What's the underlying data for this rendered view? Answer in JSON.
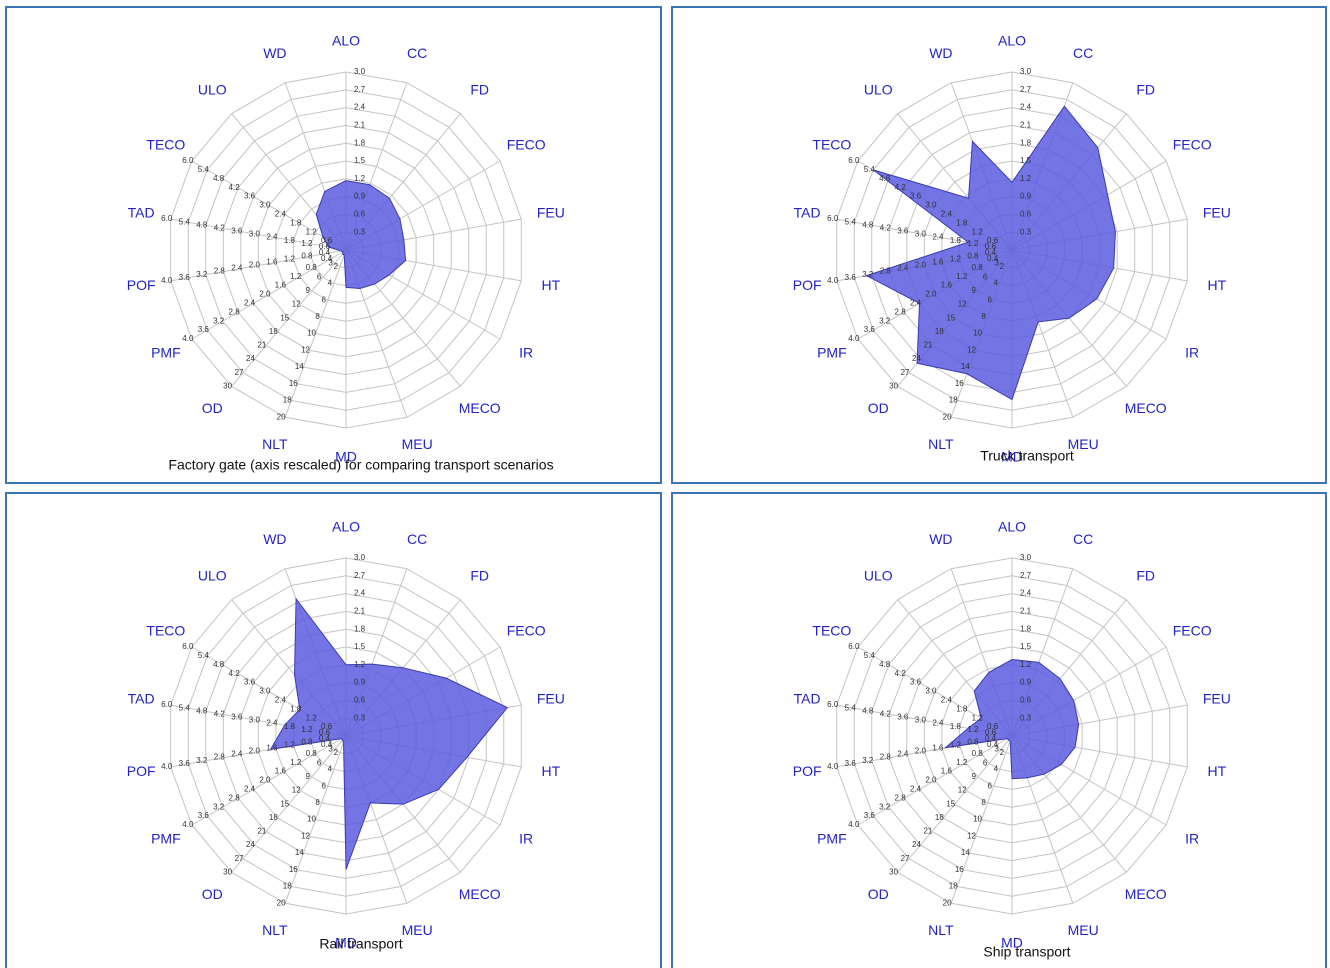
{
  "chart_data": [
    {
      "type": "radar",
      "title": "Factory gate (axis rescaled) for comparing transport scenarios",
      "categories": [
        "ALO",
        "CC",
        "FD",
        "FECO",
        "FEU",
        "HT",
        "IR",
        "MECO",
        "MEU",
        "MD",
        "NLT",
        "OD",
        "PMF",
        "POF",
        "TAD",
        "TECO",
        "ULO",
        "WD"
      ],
      "values": [
        1.17,
        3.9,
        3.8,
        3.5,
        3.3,
        3.4,
        2.8,
        2.5,
        2.3,
        2.1,
        0.6,
        0.9,
        0.08,
        0.12,
        0.6,
        0.9,
        2.6,
        3.5
      ],
      "color": "#5c5ce0",
      "rlim": [
        0,
        10
      ],
      "axis_ticks": {
        "ALO": [
          0.3,
          0.6,
          0.9,
          1.2,
          1.5,
          1.8,
          2.1,
          2.4,
          2.7,
          {
            "value": 3,
            "label": "3.0"
          }
        ],
        "NLT": [
          2,
          4,
          6,
          8,
          10,
          12,
          14,
          16,
          18,
          20
        ],
        "OD": [
          3,
          6,
          9,
          12,
          15,
          18,
          21,
          24,
          27,
          30
        ],
        "PMF": [
          0.4,
          0.8,
          1.2,
          1.6,
          {
            "value": 2,
            "label": "2.0"
          },
          2.4,
          2.8,
          3.2,
          3.6,
          {
            "value": 4,
            "label": "4.0"
          }
        ],
        "POF": [
          0.4,
          0.8,
          1.2,
          1.6,
          {
            "value": 2,
            "label": "2.0"
          },
          2.4,
          2.8,
          3.2,
          3.6,
          {
            "value": 4,
            "label": "4.0"
          }
        ],
        "TAD": [
          0.6,
          1.2,
          1.8,
          2.4,
          {
            "value": 3,
            "label": "3.0"
          },
          3.6,
          4.2,
          4.8,
          5.4,
          {
            "value": 6,
            "label": "6.0"
          }
        ],
        "TECO": [
          0.6,
          1.2,
          1.8,
          2.4,
          {
            "value": 3,
            "label": "3.0"
          },
          3.6,
          4.2,
          4.8,
          5.4,
          {
            "value": 6,
            "label": "6.0"
          }
        ]
      }
    },
    {
      "type": "radar",
      "title": "Truck transport",
      "categories": [
        "ALO",
        "CC",
        "FD",
        "FECO",
        "FEU",
        "HT",
        "IR",
        "MECO",
        "MEU",
        "MD",
        "NLT",
        "OD",
        "PMF",
        "POF",
        "TAD",
        "TECO",
        "ULO",
        "WD"
      ],
      "values": [
        1.14,
        8.6,
        7.5,
        6.2,
        5.9,
        5.8,
        5.5,
        5.0,
        4.3,
        8.4,
        14.8,
        24.9,
        2.4,
        3.32,
        1.5,
        5.4,
        3.8,
        6.5
      ],
      "color": "#5c5ce0",
      "rlim": [
        0,
        10
      ],
      "axis_ticks": {
        "ALO": [
          0.3,
          0.6,
          0.9,
          1.2,
          1.5,
          1.8,
          2.1,
          2.4,
          2.7,
          {
            "value": 3,
            "label": "3.0"
          }
        ],
        "NLT": [
          2,
          4,
          6,
          8,
          10,
          12,
          14,
          16,
          18,
          20
        ],
        "OD": [
          3,
          6,
          9,
          12,
          15,
          18,
          21,
          24,
          27,
          30
        ],
        "PMF": [
          0.4,
          0.8,
          1.2,
          1.6,
          {
            "value": 2,
            "label": "2.0"
          },
          2.4,
          2.8,
          3.2,
          3.6,
          {
            "value": 4,
            "label": "4.0"
          }
        ],
        "POF": [
          0.4,
          0.8,
          1.2,
          1.6,
          {
            "value": 2,
            "label": "2.0"
          },
          2.4,
          2.8,
          3.2,
          3.6,
          {
            "value": 4,
            "label": "4.0"
          }
        ],
        "TAD": [
          0.6,
          1.2,
          1.8,
          2.4,
          {
            "value": 3,
            "label": "3.0"
          },
          3.6,
          4.2,
          4.8,
          5.4,
          {
            "value": 6,
            "label": "6.0"
          }
        ],
        "TECO": [
          0.6,
          1.2,
          1.8,
          2.4,
          {
            "value": 3,
            "label": "3.0"
          },
          3.6,
          4.2,
          4.8,
          5.4,
          {
            "value": 6,
            "label": "6.0"
          }
        ]
      }
    },
    {
      "type": "radar",
      "title": "Rail transport",
      "categories": [
        "ALO",
        "CC",
        "FD",
        "FECO",
        "FEU",
        "HT",
        "IR",
        "MECO",
        "MEU",
        "MD",
        "NLT",
        "OD",
        "PMF",
        "POF",
        "TAD",
        "TECO",
        "ULO",
        "WD"
      ],
      "values": [
        1.2,
        4.3,
        5.0,
        6.5,
        9.2,
        6.9,
        6.0,
        5.0,
        4.0,
        7.5,
        0.8,
        0.9,
        0.12,
        1.72,
        2.1,
        1.8,
        4.5,
        8.2
      ],
      "color": "#5c5ce0",
      "rlim": [
        0,
        10
      ],
      "axis_ticks": {
        "ALO": [
          0.3,
          0.6,
          0.9,
          1.2,
          1.5,
          1.8,
          2.1,
          2.4,
          2.7,
          {
            "value": 3,
            "label": "3.0"
          }
        ],
        "NLT": [
          2,
          4,
          6,
          8,
          10,
          12,
          14,
          16,
          18,
          20
        ],
        "OD": [
          3,
          6,
          9,
          12,
          15,
          18,
          21,
          24,
          27,
          30
        ],
        "PMF": [
          0.4,
          0.8,
          1.2,
          1.6,
          {
            "value": 2,
            "label": "2.0"
          },
          2.4,
          2.8,
          3.2,
          3.6,
          {
            "value": 4,
            "label": "4.0"
          }
        ],
        "POF": [
          0.4,
          0.8,
          1.2,
          1.6,
          {
            "value": 2,
            "label": "2.0"
          },
          2.4,
          2.8,
          3.2,
          3.6,
          {
            "value": 4,
            "label": "4.0"
          }
        ],
        "TAD": [
          0.6,
          1.2,
          1.8,
          2.4,
          {
            "value": 3,
            "label": "3.0"
          },
          3.6,
          4.2,
          4.8,
          5.4,
          {
            "value": 6,
            "label": "6.0"
          }
        ],
        "TECO": [
          0.6,
          1.2,
          1.8,
          2.4,
          {
            "value": 3,
            "label": "3.0"
          },
          3.6,
          4.2,
          4.8,
          5.4,
          {
            "value": 6,
            "label": "6.0"
          }
        ]
      }
    },
    {
      "type": "radar",
      "title": "Ship transport",
      "categories": [
        "ALO",
        "CC",
        "FD",
        "FECO",
        "FEU",
        "HT",
        "IR",
        "MECO",
        "MEU",
        "MD",
        "NLT",
        "OD",
        "PMF",
        "POF",
        "TAD",
        "TECO",
        "ULO",
        "WD"
      ],
      "values": [
        1.29,
        4.4,
        4.2,
        4.0,
        3.8,
        3.6,
        3.2,
        2.8,
        2.5,
        2.4,
        0.6,
        0.9,
        0.12,
        1.52,
        1.5,
        1.2,
        3.3,
        3.8
      ],
      "color": "#5c5ce0",
      "rlim": [
        0,
        10
      ],
      "axis_ticks": {
        "ALO": [
          0.3,
          0.6,
          0.9,
          1.2,
          1.5,
          1.8,
          2.1,
          2.4,
          2.7,
          {
            "value": 3,
            "label": "3.0"
          }
        ],
        "NLT": [
          2,
          4,
          6,
          8,
          10,
          12,
          14,
          16,
          18,
          20
        ],
        "OD": [
          3,
          6,
          9,
          12,
          15,
          18,
          21,
          24,
          27,
          30
        ],
        "PMF": [
          0.4,
          0.8,
          1.2,
          1.6,
          {
            "value": 2,
            "label": "2.0"
          },
          2.4,
          2.8,
          3.2,
          3.6,
          {
            "value": 4,
            "label": "4.0"
          }
        ],
        "POF": [
          0.4,
          0.8,
          1.2,
          1.6,
          {
            "value": 2,
            "label": "2.0"
          },
          2.4,
          2.8,
          3.2,
          3.6,
          {
            "value": 4,
            "label": "4.0"
          }
        ],
        "TAD": [
          0.6,
          1.2,
          1.8,
          2.4,
          {
            "value": 3,
            "label": "3.0"
          },
          3.6,
          4.2,
          4.8,
          5.4,
          {
            "value": 6,
            "label": "6.0"
          }
        ],
        "TECO": [
          0.6,
          1.2,
          1.8,
          2.4,
          {
            "value": 3,
            "label": "3.0"
          },
          3.6,
          4.2,
          4.8,
          5.4,
          {
            "value": 6,
            "label": "6.0"
          }
        ]
      }
    }
  ]
}
